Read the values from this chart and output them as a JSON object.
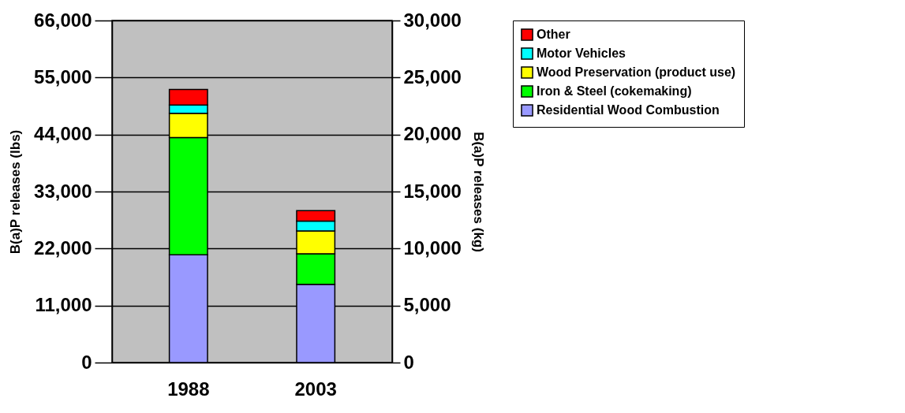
{
  "chart_data": {
    "type": "bar",
    "stacked": true,
    "categories": [
      "1988",
      "2003"
    ],
    "ylabel": "B(a)P releases (lbs)",
    "y2label": "B(a)P releases (kg)",
    "ylim": [
      0,
      66000
    ],
    "yticks": [
      {
        "value": 0,
        "label": "0"
      },
      {
        "value": 11000,
        "label": "11,000"
      },
      {
        "value": 22000,
        "label": "22,000"
      },
      {
        "value": 33000,
        "label": "33,000"
      },
      {
        "value": 44000,
        "label": "44,000"
      },
      {
        "value": 55000,
        "label": "55,000"
      },
      {
        "value": 66000,
        "label": "66,000"
      }
    ],
    "y2lim": [
      0,
      30000
    ],
    "y2ticks": [
      {
        "value": 0,
        "label": "0"
      },
      {
        "value": 5000,
        "label": "5,000"
      },
      {
        "value": 10000,
        "label": "10,000"
      },
      {
        "value": 15000,
        "label": "15,000"
      },
      {
        "value": 20000,
        "label": "20,000"
      },
      {
        "value": 25000,
        "label": "25,000"
      },
      {
        "value": 30000,
        "label": "30,000"
      }
    ],
    "grid": "y",
    "legend": "right",
    "series": [
      {
        "name": "Residential Wood Combustion",
        "color": "#9999ff",
        "values": [
          20800,
          15100
        ]
      },
      {
        "name": "Iron & Steel (cokemaking)",
        "color": "#00ff00",
        "values": [
          22600,
          5900
        ]
      },
      {
        "name": "Wood Preservation (product use)",
        "color": "#ffff00",
        "values": [
          4700,
          4400
        ]
      },
      {
        "name": "Motor Vehicles",
        "color": "#00ffff",
        "values": [
          1600,
          1900
        ]
      },
      {
        "name": "Other",
        "color": "#ff0000",
        "values": [
          3000,
          2000
        ]
      }
    ]
  }
}
